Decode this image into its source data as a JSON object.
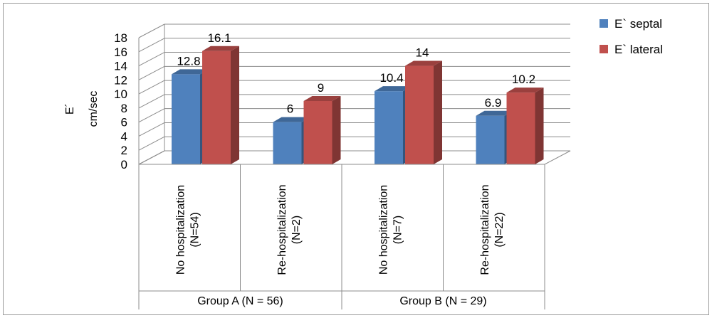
{
  "chart_data": {
    "type": "bar",
    "title": "",
    "ylabel": "E´",
    "yunit": "cm/sec",
    "ylim": [
      0,
      18
    ],
    "yticks": [
      0,
      2,
      4,
      6,
      8,
      10,
      12,
      14,
      16,
      18
    ],
    "categories": [
      {
        "line1": "No hospitalization",
        "line2": "(N=54)"
      },
      {
        "line1": "Re-hospitalization",
        "line2": "(N=2)"
      },
      {
        "line1": "No hospitalization",
        "line2": "(N=7)"
      },
      {
        "line1": "Re-hospitalization",
        "line2": "(N=22)"
      }
    ],
    "groups": [
      {
        "label": "Group A (N = 56)",
        "span": [
          0,
          1
        ]
      },
      {
        "label": "Group B (N = 29)",
        "span": [
          2,
          3
        ]
      }
    ],
    "series": [
      {
        "name": "E`  septal",
        "color": "#4F81BD",
        "values": [
          12.8,
          6,
          10.4,
          6.9
        ]
      },
      {
        "name": "E`  lateral",
        "color": "#C0504D",
        "values": [
          16.1,
          9,
          14,
          10.2
        ]
      }
    ],
    "legend_position": "top-right",
    "grid": true
  }
}
